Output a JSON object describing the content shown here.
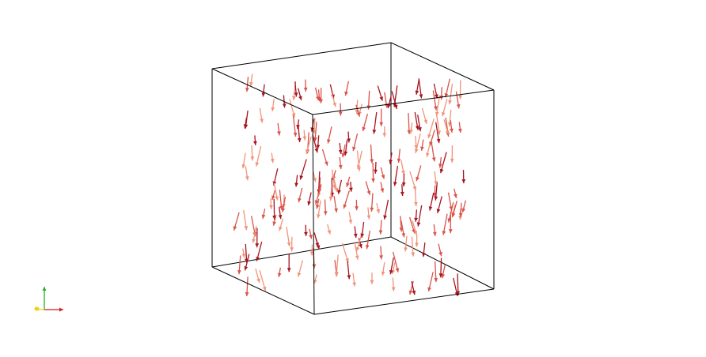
{
  "scene": {
    "background": "#ffffff",
    "box_edge_color": "#000000",
    "glyph_color_light": "#f0957a",
    "glyph_color_mid": "#d9534a",
    "glyph_color_dark": "#a8141f"
  },
  "axes": {
    "x_color": "#d11f1f",
    "y_color": "#22b022",
    "z_color": "#e8d21a"
  }
}
